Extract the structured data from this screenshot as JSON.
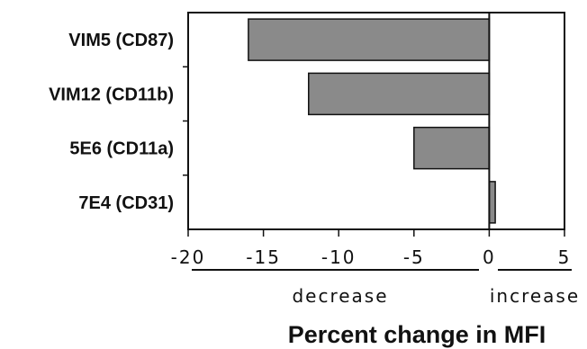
{
  "chart_data": {
    "type": "bar",
    "orientation": "horizontal",
    "categories": [
      "VIM5 (CD87)",
      "VIM12 (CD11b)",
      "5E6 (CD11a)",
      "7E4 (CD31)"
    ],
    "values": [
      -16,
      -12,
      -5,
      0.4
    ],
    "xlim": [
      -20,
      5
    ],
    "xticks": [
      -20,
      -15,
      -10,
      -5,
      0,
      5
    ],
    "xlabel": "Percent change in MFI",
    "direction_labels": {
      "negative": "decrease",
      "positive": "increase"
    },
    "bar_color": "#8a8a8a",
    "grid": false
  }
}
